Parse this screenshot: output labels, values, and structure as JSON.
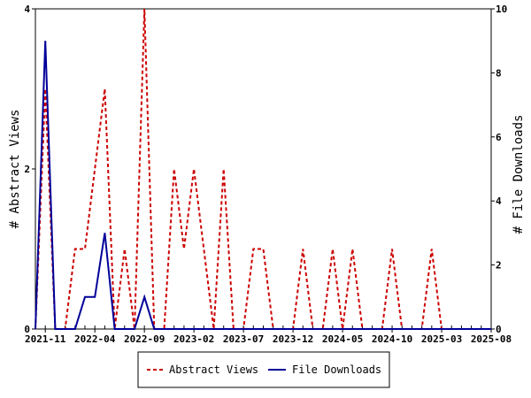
{
  "chart_data": {
    "type": "line",
    "x_ticks": [
      "2021-11",
      "2022-04",
      "2022-09",
      "2023-02",
      "2023-07",
      "2023-12",
      "2024-05",
      "2024-10",
      "2025-03",
      "2025-08"
    ],
    "x_months": [
      "2021-10",
      "2021-11",
      "2021-12",
      "2022-01",
      "2022-02",
      "2022-03",
      "2022-04",
      "2022-05",
      "2022-06",
      "2022-07",
      "2022-08",
      "2022-09",
      "2022-10",
      "2022-11",
      "2022-12",
      "2023-01",
      "2023-02",
      "2023-03",
      "2023-04",
      "2023-05",
      "2023-06",
      "2023-07",
      "2023-08",
      "2023-09",
      "2023-10",
      "2023-11",
      "2023-12",
      "2024-01",
      "2024-02",
      "2024-03",
      "2024-04",
      "2024-05",
      "2024-06",
      "2024-07",
      "2024-08",
      "2024-09",
      "2024-10",
      "2024-11",
      "2024-12",
      "2025-01",
      "2025-02",
      "2025-03",
      "2025-04",
      "2025-05",
      "2025-06",
      "2025-07",
      "2025-08"
    ],
    "series": [
      {
        "name": "Abstract Views",
        "axis": "left",
        "color": "#cc0000",
        "dash": true,
        "values": [
          0,
          3,
          0,
          0,
          1,
          1,
          2,
          3,
          0,
          1,
          0,
          4,
          0,
          0,
          2,
          1,
          2,
          1,
          0,
          2,
          0,
          0,
          1,
          1,
          0,
          0,
          0,
          1,
          0,
          0,
          1,
          0,
          1,
          0,
          0,
          0,
          1,
          0,
          0,
          0,
          1,
          0,
          0,
          0,
          0,
          0,
          0
        ]
      },
      {
        "name": "File Downloads",
        "axis": "right",
        "color": "#000099",
        "dash": false,
        "values": [
          0,
          9,
          0,
          0,
          0,
          1,
          1,
          3,
          0,
          0,
          0,
          1,
          0,
          0,
          0,
          0,
          0,
          0,
          0,
          0,
          0,
          0,
          0,
          0,
          0,
          0,
          0,
          0,
          0,
          0,
          0,
          0,
          0,
          0,
          0,
          0,
          0,
          0,
          0,
          0,
          0,
          0,
          0,
          0,
          0,
          0,
          0
        ]
      }
    ],
    "left_axis": {
      "label": "# Abstract Views",
      "min": 0,
      "max": 4,
      "ticks": [
        0,
        2,
        4
      ]
    },
    "right_axis": {
      "label": "# File Downloads",
      "min": 0,
      "max": 10,
      "ticks": [
        0,
        2,
        4,
        6,
        8,
        10
      ]
    },
    "grid": false,
    "legend_position": "bottom-center"
  }
}
